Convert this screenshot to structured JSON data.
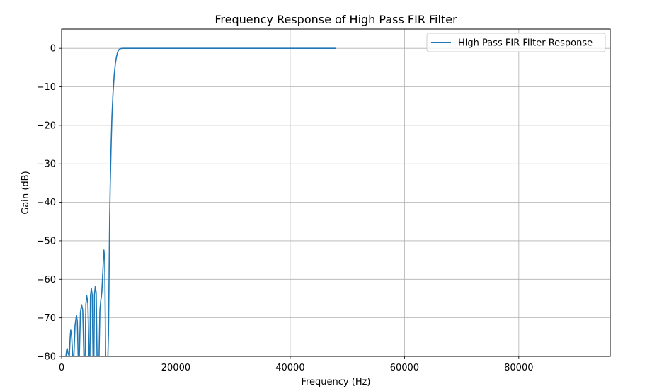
{
  "chart_data": {
    "type": "line",
    "title": "Frequency Response of High Pass FIR Filter",
    "xlabel": "Frequency (Hz)",
    "ylabel": "Gain (dB)",
    "xlim": [
      0,
      96000
    ],
    "ylim": [
      -80,
      5
    ],
    "x_ticks": [
      0,
      20000,
      40000,
      60000,
      80000
    ],
    "x_tick_labels": [
      "0",
      "20000",
      "40000",
      "60000",
      "80000"
    ],
    "y_ticks": [
      0,
      -10,
      -20,
      -30,
      -40,
      -50,
      -60,
      -70,
      -80
    ],
    "y_tick_labels": [
      "0",
      "−10",
      "−20",
      "−30",
      "−40",
      "−50",
      "−60",
      "−70",
      "−80"
    ],
    "grid": true,
    "legend_position": "top-right",
    "series": [
      {
        "name": "High Pass FIR Filter Response",
        "color": "#1f77b4",
        "x": [
          0,
          450,
          750,
          900,
          1000,
          1100,
          1350,
          1500,
          1600,
          1750,
          1950,
          2150,
          2350,
          2600,
          2750,
          2900,
          3100,
          3300,
          3500,
          3700,
          3900,
          4100,
          4250,
          4400,
          4600,
          4800,
          4950,
          5050,
          5200,
          5350,
          5500,
          5650,
          5750,
          5900,
          6050,
          6200,
          6350,
          6550,
          6700,
          6850,
          6950,
          7050,
          7150,
          7250,
          7400,
          7550,
          7700,
          7850,
          8000,
          8100,
          8200,
          8300,
          8400,
          8500,
          8650,
          8800,
          9000,
          9200,
          9400,
          9600,
          9800,
          10000,
          10200,
          10400,
          10600,
          10800,
          11000,
          11200,
          11500,
          12000,
          15000,
          20000,
          30000,
          40000,
          45000,
          48000
        ],
        "y": [
          -80,
          -80,
          -80,
          -78.2,
          -78,
          -79,
          -80,
          -75,
          -73.2,
          -74.5,
          -80,
          -80,
          -72,
          -69.3,
          -71,
          -80,
          -80,
          -68.5,
          -66.6,
          -68,
          -80,
          -80,
          -66.4,
          -64.3,
          -66.2,
          -80,
          -80,
          -64.4,
          -62.3,
          -64,
          -80,
          -80,
          -64,
          -61.8,
          -63.5,
          -80,
          -80,
          -80,
          -68,
          -65.5,
          -64.5,
          -63,
          -60,
          -57,
          -52.4,
          -55,
          -80,
          -80,
          -80,
          -80,
          -74,
          -60,
          -45,
          -36,
          -26,
          -18,
          -11.5,
          -7,
          -4,
          -2.2,
          -1,
          -0.4,
          -0.15,
          -0.05,
          -0.02,
          0,
          0,
          0,
          0,
          0,
          0,
          0,
          0,
          0,
          0,
          0
        ]
      }
    ]
  }
}
